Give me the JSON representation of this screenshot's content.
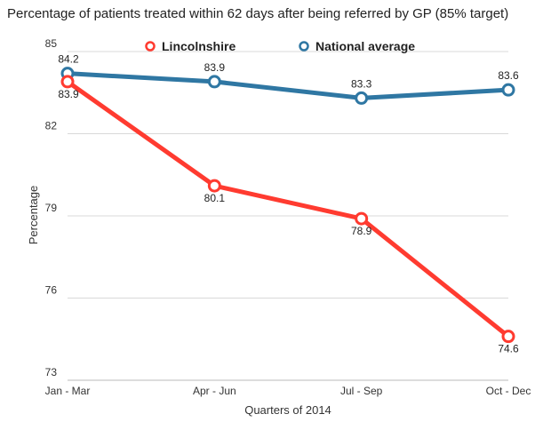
{
  "chart_data": {
    "type": "line",
    "title": "Percentage of patients treated within 62 days after being referred by GP (85% target)",
    "xlabel": "Quarters of 2014",
    "ylabel": "Percentage",
    "categories": [
      "Jan - Mar",
      "Apr - Jun",
      "Jul - Sep",
      "Oct - Dec"
    ],
    "ylim": [
      73,
      85
    ],
    "yticks": [
      73,
      76,
      79,
      82,
      85
    ],
    "grid": true,
    "legend_position": "top",
    "series": [
      {
        "name": "Lincolnshire",
        "color": "#ff3b30",
        "values": [
          83.9,
          80.1,
          78.9,
          74.6
        ],
        "labels": [
          "83.9",
          "80.1",
          "78.9",
          "74.6"
        ]
      },
      {
        "name": "National average",
        "color": "#2f77a3",
        "values": [
          84.2,
          83.9,
          83.3,
          83.6
        ],
        "labels": [
          "84.2",
          "83.9",
          "83.3",
          "83.6"
        ]
      }
    ]
  }
}
